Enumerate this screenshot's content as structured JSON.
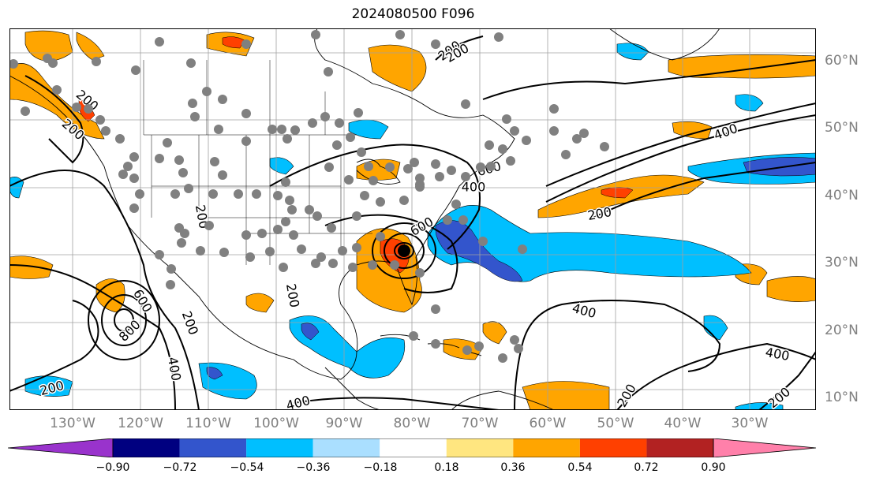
{
  "title": "2024080500 F096",
  "lat_labels": [
    "60°N",
    "50°N",
    "40°N",
    "30°N",
    "20°N",
    "10°N"
  ],
  "lon_labels": [
    "130°W",
    "120°W",
    "110°W",
    "100°W",
    "90°W",
    "80°W",
    "70°W",
    "60°W",
    "50°W",
    "40°W",
    "30°W"
  ],
  "contour_labels": [
    "200",
    "200",
    "200",
    "400",
    "600",
    "600",
    "400",
    "200",
    "600",
    "800",
    "200",
    "400",
    "200",
    "200",
    "400",
    "200",
    "400",
    "400",
    "200",
    "200",
    "200"
  ],
  "colorbar": {
    "colors": [
      "#9933cc",
      "#000080",
      "#3355cc",
      "#00bfff",
      "#aadfff",
      "#ffffff",
      "#ffe680",
      "#ffa500",
      "#ff4000",
      "#b22222",
      "#ff80aa"
    ],
    "ticks": [
      "−0.90",
      "−0.72",
      "−0.54",
      "−0.36",
      "−0.18",
      "0.18",
      "0.36",
      "0.54",
      "0.72",
      "0.90"
    ]
  },
  "colors": {
    "warm": "#ffa500",
    "warm_strong": "#ff4000",
    "cool": "#00bfff",
    "cool_strong": "#3355cc",
    "station_dot": "#808080",
    "storm_center": "#000000",
    "contour": "#000000"
  }
}
